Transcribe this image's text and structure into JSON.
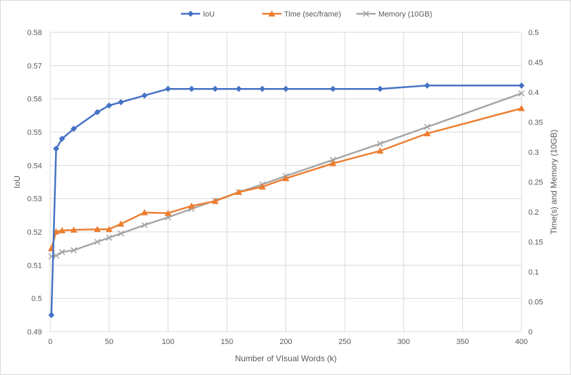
{
  "chart_data": {
    "type": "line",
    "title": "",
    "xlabel": "Number of VIsual Words (k)",
    "ylabel_left": "IoU",
    "ylabel_right": "Time(s) and Memory (10GB)",
    "xlim": [
      0,
      400
    ],
    "xticks": [
      0,
      50,
      100,
      150,
      200,
      250,
      300,
      350,
      400
    ],
    "ylim_left": [
      0.49,
      0.58
    ],
    "yticks_left": [
      0.49,
      0.5,
      0.51,
      0.52,
      0.53,
      0.54,
      0.55,
      0.56,
      0.57,
      0.58
    ],
    "ylim_right": [
      0,
      0.5
    ],
    "yticks_right": [
      0,
      0.05,
      0.1,
      0.15,
      0.2,
      0.25,
      0.3,
      0.35,
      0.4,
      0.45,
      0.5
    ],
    "grid": "vertical and horizontal",
    "legend_position": "top",
    "series": [
      {
        "name": "IoU",
        "axis": "left",
        "color": "#4472c4",
        "marker": "diamond",
        "x": [
          1,
          5,
          10,
          20,
          40,
          50,
          60,
          80,
          100,
          120,
          140,
          160,
          180,
          200,
          240,
          280,
          320,
          400
        ],
        "values": [
          0.495,
          0.545,
          0.548,
          0.551,
          0.556,
          0.558,
          0.559,
          0.561,
          0.563,
          0.563,
          0.563,
          0.563,
          0.563,
          0.563,
          0.563,
          0.563,
          0.564,
          0.564
        ]
      },
      {
        "name": "Time (sec/frame)",
        "axis": "right",
        "color": "#ed7d31",
        "marker": "triangle",
        "x": [
          1,
          5,
          10,
          20,
          40,
          50,
          60,
          80,
          100,
          120,
          140,
          160,
          180,
          200,
          240,
          280,
          320,
          400
        ],
        "values": [
          0.139,
          0.167,
          0.169,
          0.17,
          0.171,
          0.171,
          0.18,
          0.199,
          0.198,
          0.21,
          0.218,
          0.233,
          0.242,
          0.256,
          0.281,
          0.302,
          0.331,
          0.373
        ]
      },
      {
        "name": "Memory (10GB)",
        "axis": "right",
        "color": "#a5a5a5",
        "marker": "x",
        "x": [
          1,
          5,
          10,
          20,
          40,
          50,
          60,
          80,
          100,
          120,
          140,
          160,
          180,
          200,
          240,
          280,
          320,
          400
        ],
        "values": [
          0.126,
          0.127,
          0.133,
          0.136,
          0.15,
          0.157,
          0.164,
          0.178,
          0.191,
          0.205,
          0.219,
          0.233,
          0.246,
          0.26,
          0.287,
          0.314,
          0.342,
          0.398
        ]
      }
    ]
  }
}
